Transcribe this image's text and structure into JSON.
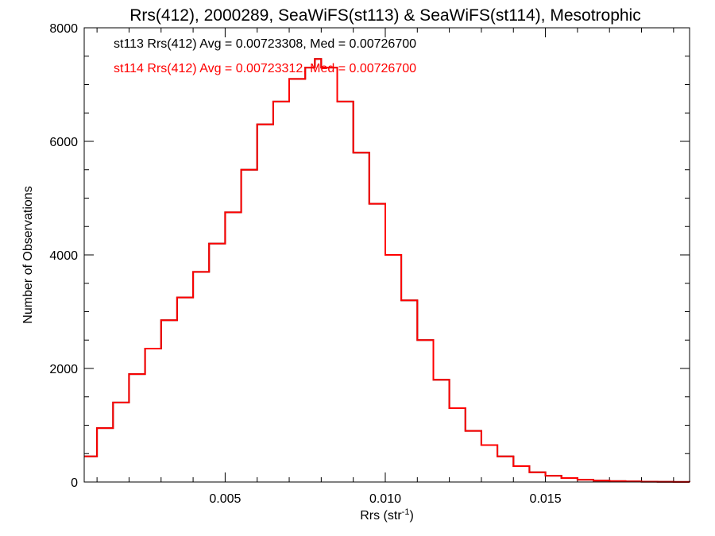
{
  "chart_data": {
    "type": "line",
    "title": "Rrs(412), 2000289, SeaWiFS(st113) & SeaWiFS(st114), Mesotrophic",
    "xlabel_base": "Rrs (str",
    "xlabel_exp": "-1",
    "xlabel_end": ")",
    "ylabel": "Number of Observations",
    "xlim": [
      0.0006,
      0.0195
    ],
    "ylim": [
      0,
      8000
    ],
    "x_ticks": [
      0.005,
      0.01,
      0.015
    ],
    "x_tick_labels": [
      "0.005",
      "0.010",
      "0.015"
    ],
    "y_ticks": [
      0,
      2000,
      4000,
      6000,
      8000
    ],
    "y_tick_labels": [
      "0",
      "2000",
      "4000",
      "6000",
      "8000"
    ],
    "x_minor_step": 0.001,
    "y_minor_step": 500,
    "grid": false,
    "legend_position": "top-left",
    "series": [
      {
        "name": "st113",
        "legend_text": "st113 Rrs(412) Avg = 0.00723308, Med = 0.00726700",
        "color": "#000000",
        "x": [
          0.0006,
          0.001,
          0.0015,
          0.002,
          0.0025,
          0.003,
          0.0035,
          0.004,
          0.0045,
          0.005,
          0.0055,
          0.006,
          0.0065,
          0.007,
          0.0075,
          0.0078,
          0.008,
          0.0085,
          0.009,
          0.0095,
          0.01,
          0.0105,
          0.011,
          0.0115,
          0.012,
          0.0125,
          0.013,
          0.0135,
          0.014,
          0.0145,
          0.015,
          0.0155,
          0.016,
          0.0165,
          0.017,
          0.0175,
          0.018,
          0.0185,
          0.019,
          0.0195
        ],
        "y": [
          450,
          950,
          1400,
          1900,
          2350,
          2850,
          3250,
          3700,
          4200,
          4750,
          5500,
          6300,
          6700,
          7100,
          7300,
          7450,
          7300,
          6700,
          5800,
          4900,
          4000,
          3200,
          2500,
          1800,
          1300,
          900,
          650,
          450,
          280,
          170,
          110,
          70,
          40,
          25,
          15,
          10,
          5,
          3,
          2,
          0
        ]
      },
      {
        "name": "st114",
        "legend_text": "st114 Rrs(412) Avg = 0.00723312, Med = 0.00726700",
        "color": "#ff0000",
        "x": [
          0.0006,
          0.001,
          0.0015,
          0.002,
          0.0025,
          0.003,
          0.0035,
          0.004,
          0.0045,
          0.005,
          0.0055,
          0.006,
          0.0065,
          0.007,
          0.0075,
          0.0078,
          0.008,
          0.0085,
          0.009,
          0.0095,
          0.01,
          0.0105,
          0.011,
          0.0115,
          0.012,
          0.0125,
          0.013,
          0.0135,
          0.014,
          0.0145,
          0.015,
          0.0155,
          0.016,
          0.0165,
          0.017,
          0.0175,
          0.018,
          0.0185,
          0.019,
          0.0195
        ],
        "y": [
          450,
          950,
          1400,
          1900,
          2350,
          2850,
          3250,
          3700,
          4200,
          4750,
          5500,
          6300,
          6700,
          7100,
          7300,
          7450,
          7300,
          6700,
          5800,
          4900,
          4000,
          3200,
          2500,
          1800,
          1300,
          900,
          650,
          450,
          280,
          170,
          110,
          70,
          40,
          25,
          15,
          10,
          5,
          3,
          2,
          0
        ]
      }
    ]
  }
}
